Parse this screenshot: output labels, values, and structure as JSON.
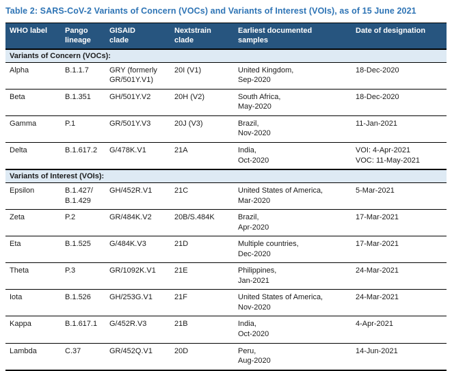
{
  "title": "Table 2: SARS-CoV-2 Variants of Concern (VOCs) and Variants of Interest (VOIs), as of 15 June 2021",
  "colors": {
    "title_text": "#2E74B5",
    "header_bg": "#27557F",
    "header_text": "#FFFFFF",
    "section_bg": "#DEEAF4",
    "border": "#000000"
  },
  "table": {
    "headers": [
      "WHO label",
      "Pango\nlineage",
      "GISAID\nclade",
      "Nextstrain\nclade",
      "Earliest documented\nsamples",
      "Date of designation"
    ],
    "sections": [
      {
        "label": "Variants of Concern (VOCs):",
        "rows": [
          [
            "Alpha",
            "B.1.1.7",
            "GRY (formerly\nGR/501Y.V1)",
            "20I (V1)",
            "United Kingdom,\nSep-2020",
            "18-Dec-2020"
          ],
          [
            "Beta",
            "B.1.351",
            "GH/501Y.V2",
            "20H (V2)",
            "South Africa,\nMay-2020",
            "18-Dec-2020"
          ],
          [
            "Gamma",
            "P.1",
            "GR/501Y.V3",
            "20J (V3)",
            "Brazil,\nNov-2020",
            "11-Jan-2021"
          ],
          [
            "Delta",
            "B.1.617.2",
            "G/478K.V1",
            "21A",
            "India,\nOct-2020",
            "VOI: 4-Apr-2021\nVOC: 11-May-2021"
          ]
        ]
      },
      {
        "label": "Variants of Interest (VOIs):",
        "rows": [
          [
            "Epsilon",
            "B.1.427/\nB.1.429",
            "GH/452R.V1",
            "21C",
            "United States of America,\nMar-2020",
            "5-Mar-2021"
          ],
          [
            "Zeta",
            "P.2",
            "GR/484K.V2",
            "20B/S.484K",
            "Brazil,\nApr-2020",
            "17-Mar-2021"
          ],
          [
            "Eta",
            "B.1.525",
            "G/484K.V3",
            "21D",
            "Multiple countries,\nDec-2020",
            "17-Mar-2021"
          ],
          [
            "Theta",
            "P.3",
            "GR/1092K.V1",
            "21E",
            "Philippines,\nJan-2021",
            "24-Mar-2021"
          ],
          [
            "Iota",
            "B.1.526",
            "GH/253G.V1",
            "21F",
            "United States of America,\nNov-2020",
            "24-Mar-2021"
          ],
          [
            "Kappa",
            "B.1.617.1",
            "G/452R.V3",
            "21B",
            "India,\nOct-2020",
            "4-Apr-2021"
          ],
          [
            "Lambda",
            "C.37",
            "GR/452Q.V1",
            "20D",
            "Peru,\nAug-2020",
            "14-Jun-2021"
          ]
        ]
      }
    ]
  }
}
